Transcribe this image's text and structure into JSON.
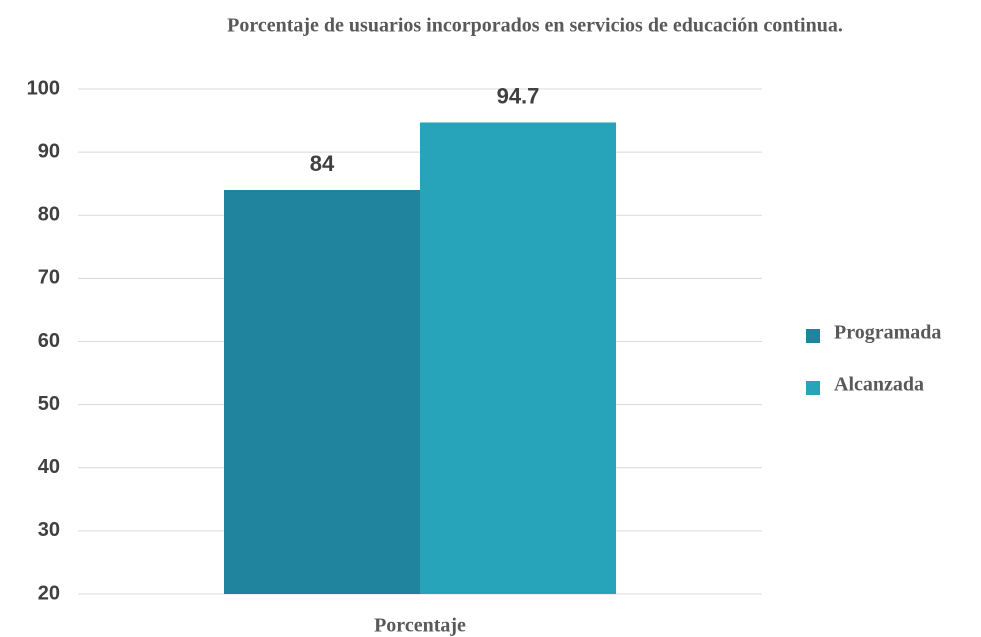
{
  "chart_data": {
    "type": "bar",
    "title": "Porcentaje de usuarios incorporados en servicios de educación continua.",
    "categories": [
      "Porcentaje"
    ],
    "series": [
      {
        "name": "Programada",
        "color": "#21849f",
        "values": [
          84
        ]
      },
      {
        "name": "Alcanzada",
        "color": "#27a4ba",
        "values": [
          94.7
        ]
      }
    ],
    "ylim": [
      20,
      100
    ],
    "yticks": [
      20,
      30,
      40,
      50,
      60,
      70,
      80,
      90,
      100
    ],
    "grid": true,
    "legend": "right"
  }
}
